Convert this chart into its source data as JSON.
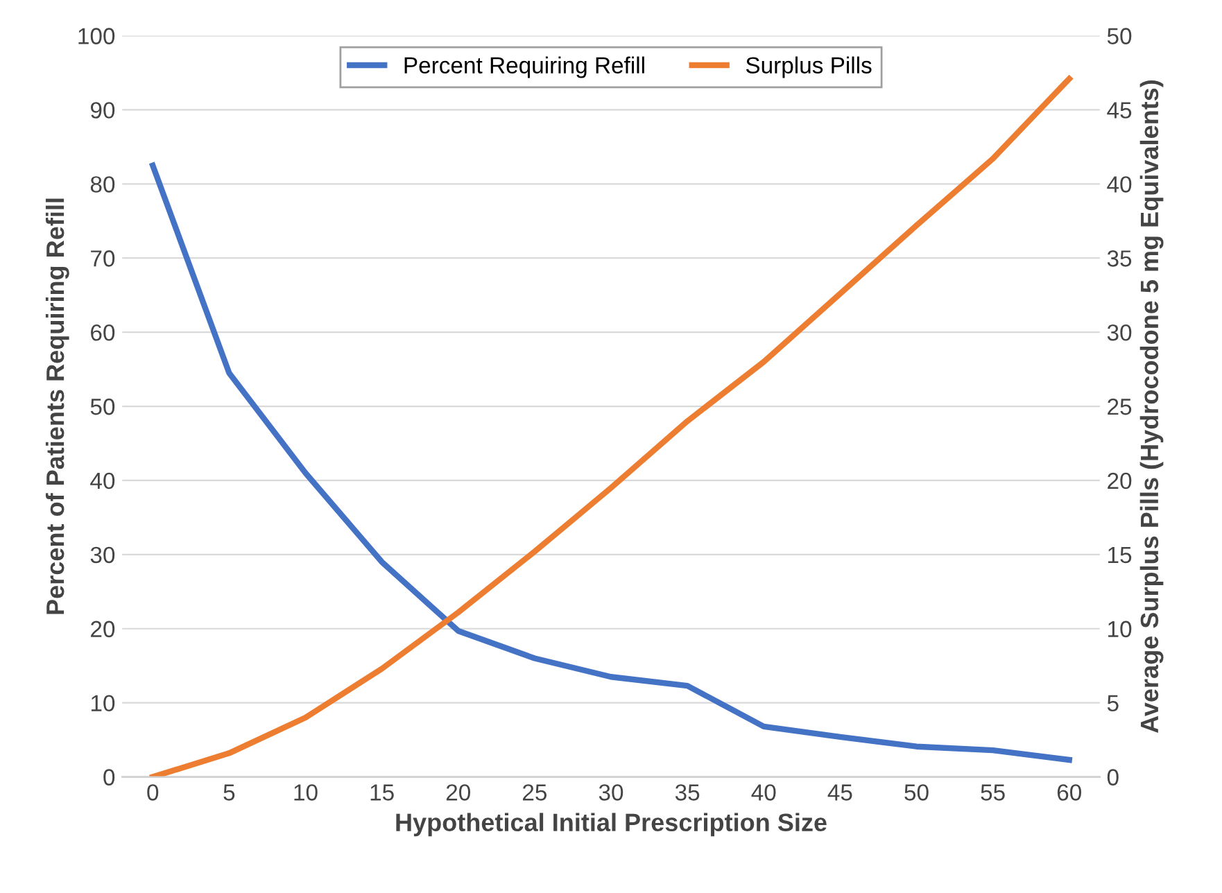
{
  "chart_data": {
    "type": "line",
    "xlabel": "Hypothetical Initial Prescription Size",
    "ylabel": "Percent of Patients Requiring Refill",
    "y2label": "Average Surplus Pills (Hydrocodone 5 mg Equivalents)",
    "x": [
      0,
      5,
      10,
      15,
      20,
      25,
      30,
      35,
      40,
      45,
      50,
      55,
      60
    ],
    "xlim": [
      -2,
      62
    ],
    "xticks": [
      0,
      5,
      10,
      15,
      20,
      25,
      30,
      35,
      40,
      45,
      50,
      55,
      60
    ],
    "ylim": [
      0,
      100
    ],
    "yticks": [
      0,
      10,
      20,
      30,
      40,
      50,
      60,
      70,
      80,
      90,
      100
    ],
    "y2lim": [
      0,
      50
    ],
    "y2ticks": [
      0,
      5,
      10,
      15,
      20,
      25,
      30,
      35,
      40,
      45,
      50
    ],
    "grid": "y",
    "legend": "top",
    "marker": "none",
    "line_style": "solid",
    "series": [
      {
        "name": "Percent Requiring Refill",
        "color": "#4472c4",
        "values": [
          82.5,
          54.5,
          41,
          29,
          19.7,
          16,
          13.5,
          12.3,
          6.8,
          5.4,
          4.1,
          3.6,
          2.3
        ]
      },
      {
        "name": "Surplus Pills",
        "color": "#ed7d31",
        "axis": "y2",
        "values": [
          0,
          1.6,
          4.0,
          7.3,
          11.1,
          15.2,
          19.5,
          24,
          28,
          32.6,
          37.2,
          41.7,
          47.1
        ]
      }
    ]
  }
}
